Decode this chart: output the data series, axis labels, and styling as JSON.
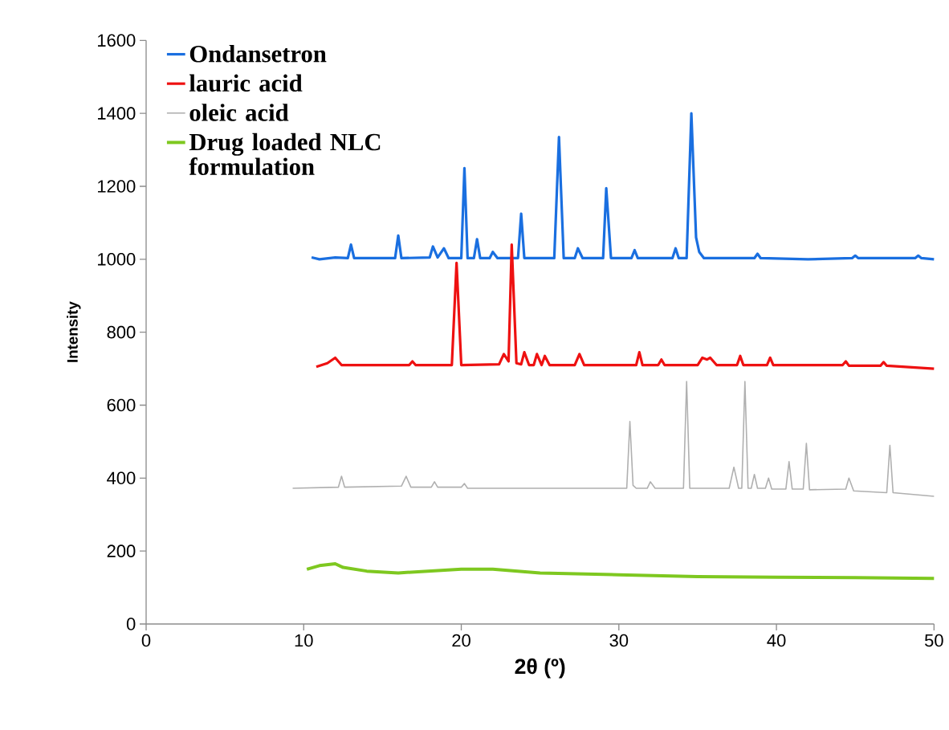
{
  "chart_data": {
    "type": "line",
    "xlabel": "2θ (º)",
    "ylabel": "Intensity",
    "xlim": [
      0,
      50
    ],
    "xticks": [
      0,
      10,
      20,
      30,
      40,
      50
    ],
    "ylim": [
      0,
      1600
    ],
    "yticks": [
      0,
      200,
      400,
      600,
      800,
      1000,
      1200,
      1400,
      1600
    ],
    "grid": false,
    "legend": "top left",
    "marker": "none",
    "line_style": "solid",
    "series": [
      {
        "name": "Ondansetron",
        "color": "#1a6fe0",
        "x": [
          10.5,
          11,
          12,
          12.8,
          13.0,
          13.2,
          15.8,
          16.0,
          16.2,
          18.0,
          18.2,
          18.5,
          18.9,
          19.2,
          20.0,
          20.2,
          20.4,
          20.8,
          21.0,
          21.2,
          21.8,
          22.0,
          22.3,
          23.6,
          23.8,
          24.0,
          25.9,
          26.2,
          26.5,
          27.2,
          27.4,
          27.7,
          29.0,
          29.2,
          29.5,
          30.8,
          31.0,
          31.2,
          33.4,
          33.6,
          33.8,
          34.3,
          34.6,
          34.9,
          35.1,
          35.4,
          38.6,
          38.8,
          39.0,
          42,
          44.8,
          45,
          45.2,
          48.8,
          49,
          49.2,
          50
        ],
        "values": [
          1005,
          1000,
          1005,
          1003,
          1040,
          1003,
          1003,
          1065,
          1003,
          1005,
          1035,
          1005,
          1030,
          1003,
          1003,
          1250,
          1003,
          1003,
          1055,
          1003,
          1003,
          1020,
          1003,
          1003,
          1125,
          1003,
          1003,
          1335,
          1003,
          1003,
          1030,
          1003,
          1003,
          1195,
          1003,
          1003,
          1025,
          1003,
          1003,
          1030,
          1003,
          1003,
          1400,
          1060,
          1020,
          1003,
          1003,
          1015,
          1003,
          1000,
          1003,
          1010,
          1003,
          1003,
          1010,
          1003,
          1000
        ]
      },
      {
        "name": "lauric acid",
        "color": "#ee1111",
        "x": [
          10.8,
          11.5,
          12.0,
          12.4,
          16.7,
          16.9,
          17.1,
          19.4,
          19.7,
          20.0,
          22.4,
          22.7,
          23.0,
          23.2,
          23.5,
          23.8,
          24.0,
          24.3,
          24.6,
          24.8,
          25.1,
          25.3,
          25.6,
          27.2,
          27.5,
          27.8,
          31.1,
          31.3,
          31.5,
          32.5,
          32.7,
          32.9,
          35.0,
          35.3,
          35.6,
          35.8,
          36.2,
          37.5,
          37.7,
          37.9,
          39.4,
          39.6,
          39.8,
          44.2,
          44.4,
          44.6,
          46.6,
          46.8,
          47.0,
          50
        ],
        "values": [
          705,
          715,
          730,
          710,
          710,
          720,
          710,
          710,
          990,
          710,
          712,
          740,
          720,
          1040,
          715,
          712,
          745,
          710,
          710,
          740,
          710,
          735,
          710,
          710,
          740,
          710,
          710,
          745,
          710,
          710,
          725,
          710,
          710,
          730,
          725,
          730,
          710,
          710,
          735,
          710,
          710,
          730,
          710,
          710,
          720,
          708,
          708,
          718,
          708,
          700
        ]
      },
      {
        "name": "oleic acid",
        "color": "#b0b0b0",
        "x": [
          9.3,
          12.2,
          12.4,
          12.6,
          16.2,
          16.5,
          16.8,
          18.1,
          18.3,
          18.5,
          20.0,
          20.2,
          20.4,
          30.5,
          30.7,
          30.9,
          31.1,
          31.8,
          32.0,
          32.3,
          34.1,
          34.3,
          34.5,
          37.0,
          37.3,
          37.6,
          37.8,
          38.0,
          38.2,
          38.4,
          38.6,
          38.8,
          39.3,
          39.5,
          39.7,
          40.6,
          40.8,
          41.0,
          41.7,
          41.9,
          42.1,
          44.4,
          44.6,
          44.9,
          47.0,
          47.2,
          47.4,
          50
        ],
        "values": [
          372,
          375,
          405,
          375,
          378,
          405,
          375,
          375,
          390,
          375,
          375,
          385,
          372,
          372,
          555,
          380,
          372,
          372,
          390,
          372,
          372,
          665,
          372,
          372,
          430,
          372,
          372,
          665,
          372,
          372,
          410,
          372,
          372,
          400,
          370,
          370,
          445,
          370,
          370,
          495,
          368,
          370,
          400,
          365,
          360,
          490,
          360,
          350
        ]
      },
      {
        "name": "Drug loaded NLC formulation",
        "color": "#7ec820",
        "x": [
          10.2,
          11,
          12,
          12.5,
          14,
          16,
          20,
          22,
          25,
          30,
          35,
          40,
          45,
          50
        ],
        "values": [
          150,
          160,
          165,
          155,
          145,
          140,
          150,
          150,
          140,
          135,
          130,
          128,
          127,
          125
        ]
      }
    ]
  }
}
